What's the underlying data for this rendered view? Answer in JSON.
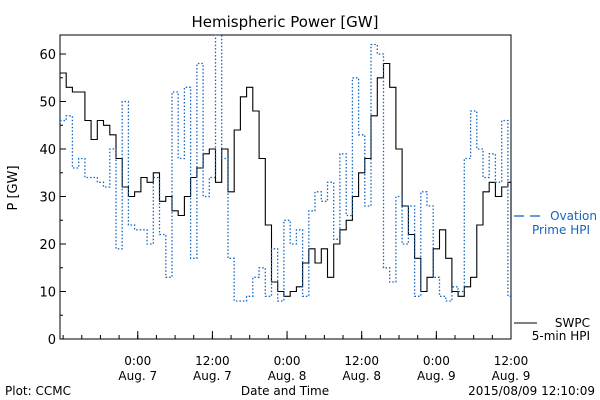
{
  "chart_data": {
    "type": "line",
    "title": "Hemispheric Power [GW]",
    "xlabel": "Date and Time",
    "ylabel": "P [GW]",
    "ylim": [
      0,
      64
    ],
    "grid": false,
    "legend_placement": "right",
    "y_ticks": [
      0,
      10,
      20,
      30,
      40,
      50,
      60
    ],
    "x_ticks": [
      {
        "time": "2015-08-07 00:00",
        "line1": "0:00",
        "line2": "Aug. 7"
      },
      {
        "time": "2015-08-07 12:00",
        "line1": "12:00",
        "line2": "Aug. 7"
      },
      {
        "time": "2015-08-08 00:00",
        "line1": "0:00",
        "line2": "Aug. 8"
      },
      {
        "time": "2015-08-08 12:00",
        "line1": "12:00",
        "line2": "Aug. 8"
      },
      {
        "time": "2015-08-09 00:00",
        "line1": "0:00",
        "line2": "Aug. 9"
      },
      {
        "time": "2015-08-09 12:00",
        "line1": "12:00",
        "line2": "Aug. 9"
      }
    ],
    "xlim": [
      "2015-08-06 11:30",
      "2015-08-09 12:00"
    ],
    "series": [
      {
        "name": "SWPC 5-min HPI",
        "legend_lines": [
          "SWPC",
          "5-min HPI"
        ],
        "style": "solid",
        "color": "#000000",
        "x": [
          "2015-08-06 11:30",
          "2015-08-06 12:30",
          "2015-08-06 13:30",
          "2015-08-06 14:30",
          "2015-08-06 15:30",
          "2015-08-06 16:30",
          "2015-08-06 17:30",
          "2015-08-06 18:30",
          "2015-08-06 19:30",
          "2015-08-06 20:30",
          "2015-08-06 21:30",
          "2015-08-06 22:30",
          "2015-08-06 23:30",
          "2015-08-07 00:30",
          "2015-08-07 01:30",
          "2015-08-07 02:30",
          "2015-08-07 03:30",
          "2015-08-07 04:30",
          "2015-08-07 05:30",
          "2015-08-07 06:30",
          "2015-08-07 07:30",
          "2015-08-07 08:30",
          "2015-08-07 09:30",
          "2015-08-07 10:30",
          "2015-08-07 11:30",
          "2015-08-07 12:30",
          "2015-08-07 13:30",
          "2015-08-07 14:30",
          "2015-08-07 15:30",
          "2015-08-07 16:30",
          "2015-08-07 17:30",
          "2015-08-07 18:30",
          "2015-08-07 19:30",
          "2015-08-07 20:30",
          "2015-08-07 21:30",
          "2015-08-07 22:30",
          "2015-08-07 23:30",
          "2015-08-08 00:30",
          "2015-08-08 01:30",
          "2015-08-08 02:30",
          "2015-08-08 03:30",
          "2015-08-08 04:30",
          "2015-08-08 05:30",
          "2015-08-08 06:30",
          "2015-08-08 07:30",
          "2015-08-08 08:30",
          "2015-08-08 09:30",
          "2015-08-08 10:30",
          "2015-08-08 11:30",
          "2015-08-08 12:30",
          "2015-08-08 13:30",
          "2015-08-08 14:30",
          "2015-08-08 15:30",
          "2015-08-08 16:30",
          "2015-08-08 17:30",
          "2015-08-08 18:30",
          "2015-08-08 19:30",
          "2015-08-08 20:30",
          "2015-08-08 21:30",
          "2015-08-08 22:30",
          "2015-08-08 23:30",
          "2015-08-09 00:30",
          "2015-08-09 01:30",
          "2015-08-09 02:30",
          "2015-08-09 03:30",
          "2015-08-09 04:30",
          "2015-08-09 05:30",
          "2015-08-09 06:30",
          "2015-08-09 07:30",
          "2015-08-09 08:30",
          "2015-08-09 09:30",
          "2015-08-09 10:30",
          "2015-08-09 11:30",
          "2015-08-09 12:00"
        ],
        "values": [
          56,
          53,
          52,
          52,
          46,
          42,
          46,
          45,
          43,
          38,
          32,
          30,
          31,
          34,
          33,
          35,
          29,
          30,
          27,
          26,
          30,
          34,
          36,
          39,
          40,
          33,
          40,
          31,
          44,
          51,
          53,
          48,
          38,
          24,
          12,
          10,
          9,
          10,
          11,
          16,
          19,
          16,
          19,
          13,
          20,
          23,
          25,
          30,
          35,
          38,
          47,
          55,
          58,
          53,
          40,
          28,
          22,
          17,
          10,
          13,
          19,
          23,
          17,
          10,
          9,
          11,
          13,
          24,
          31,
          33,
          30,
          32,
          33,
          23
        ]
      },
      {
        "name": "Ovation Prime HPI",
        "legend_lines": [
          "Ovation",
          "Prime HPI"
        ],
        "style": "dotted",
        "color": "#1565c0",
        "x": [
          "2015-08-06 11:30",
          "2015-08-06 12:30",
          "2015-08-06 13:30",
          "2015-08-06 14:30",
          "2015-08-06 15:30",
          "2015-08-06 16:30",
          "2015-08-06 17:30",
          "2015-08-06 18:30",
          "2015-08-06 19:30",
          "2015-08-06 20:30",
          "2015-08-06 21:30",
          "2015-08-06 22:30",
          "2015-08-06 23:30",
          "2015-08-07 00:30",
          "2015-08-07 01:30",
          "2015-08-07 02:30",
          "2015-08-07 03:30",
          "2015-08-07 04:30",
          "2015-08-07 05:30",
          "2015-08-07 06:30",
          "2015-08-07 07:30",
          "2015-08-07 08:30",
          "2015-08-07 09:30",
          "2015-08-07 10:30",
          "2015-08-07 11:30",
          "2015-08-07 12:30",
          "2015-08-07 13:30",
          "2015-08-07 14:30",
          "2015-08-07 15:30",
          "2015-08-07 16:30",
          "2015-08-07 17:30",
          "2015-08-07 18:30",
          "2015-08-07 19:30",
          "2015-08-07 20:30",
          "2015-08-07 21:30",
          "2015-08-07 22:30",
          "2015-08-07 23:30",
          "2015-08-08 00:30",
          "2015-08-08 01:30",
          "2015-08-08 02:30",
          "2015-08-08 03:30",
          "2015-08-08 04:30",
          "2015-08-08 05:30",
          "2015-08-08 06:30",
          "2015-08-08 07:30",
          "2015-08-08 08:30",
          "2015-08-08 09:30",
          "2015-08-08 10:30",
          "2015-08-08 11:30",
          "2015-08-08 12:30",
          "2015-08-08 13:30",
          "2015-08-08 14:30",
          "2015-08-08 15:30",
          "2015-08-08 16:30",
          "2015-08-08 17:30",
          "2015-08-08 18:30",
          "2015-08-08 19:30",
          "2015-08-08 20:30",
          "2015-08-08 21:30",
          "2015-08-08 22:30",
          "2015-08-08 23:30",
          "2015-08-09 00:30",
          "2015-08-09 01:30",
          "2015-08-09 02:30",
          "2015-08-09 03:30",
          "2015-08-09 04:30",
          "2015-08-09 05:30",
          "2015-08-09 06:30",
          "2015-08-09 07:30",
          "2015-08-09 08:30",
          "2015-08-09 09:30",
          "2015-08-09 10:30",
          "2015-08-09 11:30",
          "2015-08-09 12:00"
        ],
        "values": [
          46,
          47,
          36,
          38,
          34,
          34,
          33,
          32,
          40,
          19,
          50,
          24,
          23,
          23,
          20,
          34,
          22,
          13,
          52,
          38,
          53,
          17,
          58,
          30,
          34,
          64,
          38,
          17,
          8,
          8,
          9,
          13,
          15,
          9,
          19,
          8,
          25,
          20,
          23,
          9,
          27,
          31,
          29,
          33,
          21,
          39,
          26,
          55,
          43,
          28,
          62,
          60,
          15,
          12,
          30,
          20,
          28,
          9,
          31,
          28,
          13,
          9,
          8,
          11,
          10,
          38,
          48,
          40,
          34,
          39,
          33,
          46,
          9,
          9
        ]
      }
    ]
  },
  "footer": {
    "plot_credit": "Plot: CCMC",
    "timestamp": "2015/08/09 12:10:09"
  },
  "colors": {
    "axis": "#000000",
    "ovation": "#1565c0",
    "swpc": "#000000"
  }
}
